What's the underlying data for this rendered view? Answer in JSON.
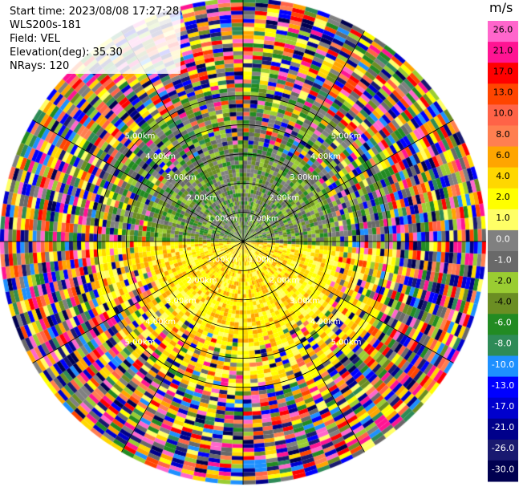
{
  "header": {
    "start_time": "Start time: 2023/08/08 17:27:28",
    "station": "WLS200s-181",
    "field": "Field: VEL",
    "elevation": "Elevation(deg): 35.30",
    "nrays": "NRays: 120"
  },
  "chart_data": {
    "type": "heatmap",
    "title": "",
    "projection": "polar PPI",
    "field": "VEL",
    "units": "m/s",
    "n_rays": 120,
    "grid": true,
    "range_ring_labels": [
      "1.00km",
      "2.00km",
      "3.00km",
      "4.00km",
      "5.00km"
    ],
    "range_rings_km": [
      1,
      2,
      3,
      4,
      5
    ],
    "colorbar": {
      "label": "m/s",
      "placement": "right",
      "ticks": [
        "26.0",
        "21.0",
        "17.0",
        "13.0",
        "10.0",
        "8.0",
        "6.0",
        "4.0",
        "2.0",
        "1.0",
        "0.0",
        "-1.0",
        "-2.0",
        "-4.0",
        "-6.0",
        "-8.0",
        "-10.0",
        "-13.0",
        "-17.0",
        "-21.0",
        "-26.0",
        "-30.0"
      ],
      "colors": [
        "#ff66cc",
        "#ff1493",
        "#ff0000",
        "#ff4500",
        "#ff6347",
        "#ff7f50",
        "#ffa500",
        "#ffd700",
        "#ffff00",
        "#ffff66",
        "#808080",
        "#696969",
        "#9acd32",
        "#6b8e23",
        "#228b22",
        "#2e8b57",
        "#1e90ff",
        "#0000ff",
        "#0000cd",
        "#00008b",
        "#191970",
        "#000050"
      ]
    }
  }
}
